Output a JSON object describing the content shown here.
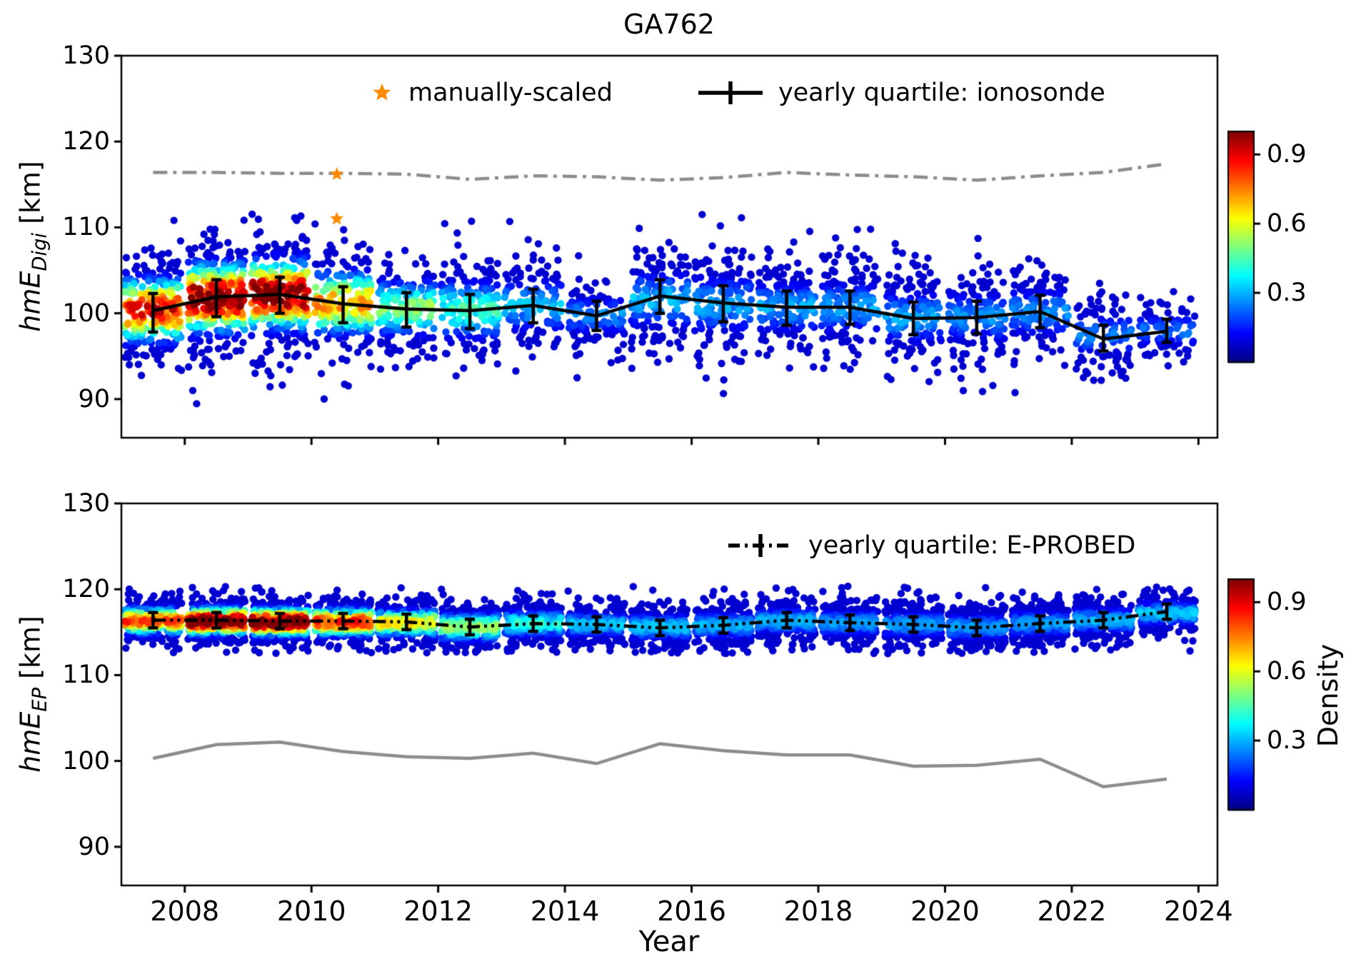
{
  "figure": {
    "title": "GA762",
    "xlabel": "Year",
    "colorbar": {
      "label": "Density",
      "ticks": [
        0.9,
        0.6,
        0.3
      ],
      "range": [
        0,
        1
      ]
    },
    "colors": {
      "reference_gray": "#8c8c8c",
      "quartile_black": "#000000",
      "manual_star_orange": "#ff8c00"
    }
  },
  "chart_data": [
    {
      "type": "scatter",
      "panel": "top",
      "title": "GA762",
      "ylabel": "hmE_Digi [km]",
      "ylabel_parts": {
        "main": "hmE",
        "sub": "Digi",
        "unit": " [km]"
      },
      "xlim": [
        2007.0,
        2024.3
      ],
      "ylim": [
        85.5,
        130
      ],
      "yticks": [
        130,
        120,
        110,
        100,
        90
      ],
      "xticks": [
        2008,
        2010,
        2012,
        2014,
        2016,
        2018,
        2020,
        2022,
        2024
      ],
      "x_tick_labels_visible": false,
      "legend": [
        {
          "label": "manually-scaled",
          "marker": "star",
          "color": "#ff8c00"
        },
        {
          "label": "yearly quartile: ionosonde",
          "marker": "errorbar-solid-line",
          "color": "#000000"
        }
      ],
      "series": [
        {
          "name": "E-PROBED yearly median (reference)",
          "style": "dashdot",
          "color": "#8c8c8c",
          "x": [
            2007.5,
            2008.5,
            2009.5,
            2010.5,
            2011.5,
            2012.5,
            2013.5,
            2014.5,
            2015.5,
            2016.5,
            2017.5,
            2018.5,
            2019.5,
            2020.5,
            2021.5,
            2022.5,
            2023.5
          ],
          "y": [
            116.4,
            116.4,
            116.3,
            116.3,
            116.2,
            115.6,
            116.0,
            115.9,
            115.5,
            115.8,
            116.4,
            116.1,
            115.9,
            115.5,
            116.0,
            116.4,
            117.4
          ]
        },
        {
          "name": "yearly quartile: ionosonde",
          "style": "solid",
          "color": "#000000",
          "x": [
            2007.5,
            2008.5,
            2009.5,
            2010.5,
            2011.5,
            2012.5,
            2013.5,
            2014.5,
            2015.5,
            2016.5,
            2017.5,
            2018.5,
            2019.5,
            2020.5,
            2021.5,
            2022.5,
            2023.5
          ],
          "median": [
            100.3,
            101.9,
            102.2,
            101.1,
            100.5,
            100.3,
            100.9,
            99.7,
            102.0,
            101.2,
            100.7,
            100.7,
            99.4,
            99.5,
            100.2,
            97.0,
            97.9
          ],
          "q1": [
            97.8,
            99.6,
            100.0,
            98.9,
            98.4,
            98.2,
            98.9,
            98.0,
            100.0,
            99.0,
            98.6,
            98.7,
            97.5,
            97.6,
            98.3,
            95.6,
            96.6
          ],
          "q3": [
            102.3,
            103.9,
            104.2,
            103.1,
            102.4,
            102.2,
            102.8,
            101.4,
            103.9,
            103.2,
            102.6,
            102.6,
            101.3,
            101.4,
            102.1,
            98.6,
            99.3
          ]
        }
      ],
      "scatter_clusters": [
        {
          "year": 2007.5,
          "n": 260,
          "mu": 100.4,
          "sigma": 3.4,
          "peak": 0.85
        },
        {
          "year": 2008.5,
          "n": 330,
          "mu": 101.8,
          "sigma": 3.6,
          "peak": 1.0
        },
        {
          "year": 2009.5,
          "n": 330,
          "mu": 102.2,
          "sigma": 3.6,
          "peak": 1.0
        },
        {
          "year": 2010.5,
          "n": 230,
          "mu": 101.2,
          "sigma": 3.4,
          "peak": 0.7
        },
        {
          "year": 2011.5,
          "n": 170,
          "mu": 100.6,
          "sigma": 3.0,
          "peak": 0.5
        },
        {
          "year": 2012.5,
          "n": 180,
          "mu": 100.4,
          "sigma": 3.2,
          "peak": 0.42
        },
        {
          "year": 2013.5,
          "n": 140,
          "mu": 100.9,
          "sigma": 3.0,
          "peak": 0.3
        },
        {
          "year": 2014.5,
          "n": 110,
          "mu": 99.8,
          "sigma": 2.2,
          "peak": 0.26
        },
        {
          "year": 2015.5,
          "n": 170,
          "mu": 101.6,
          "sigma": 3.2,
          "peak": 0.3
        },
        {
          "year": 2016.5,
          "n": 180,
          "mu": 101.0,
          "sigma": 3.4,
          "peak": 0.28
        },
        {
          "year": 2017.5,
          "n": 170,
          "mu": 100.7,
          "sigma": 3.0,
          "peak": 0.28
        },
        {
          "year": 2018.5,
          "n": 160,
          "mu": 100.7,
          "sigma": 3.0,
          "peak": 0.28
        },
        {
          "year": 2019.5,
          "n": 160,
          "mu": 99.5,
          "sigma": 3.0,
          "peak": 0.28
        },
        {
          "year": 2020.5,
          "n": 150,
          "mu": 99.6,
          "sigma": 3.0,
          "peak": 0.26
        },
        {
          "year": 2021.5,
          "n": 150,
          "mu": 100.2,
          "sigma": 2.8,
          "peak": 0.26
        },
        {
          "year": 2022.5,
          "n": 110,
          "mu": 97.5,
          "sigma": 2.4,
          "peak": 0.24
        },
        {
          "year": 2023.5,
          "n": 90,
          "mu": 98.0,
          "sigma": 1.8,
          "peak": 0.24
        }
      ],
      "scatter_y_range": [
        89.3,
        111.6
      ],
      "manually_scaled_points": [
        {
          "x": 2010.4,
          "y": 116.2
        },
        {
          "x": 2010.4,
          "y": 111.0
        }
      ]
    },
    {
      "type": "scatter",
      "panel": "bottom",
      "ylabel": "hmE_EP [km]",
      "ylabel_parts": {
        "main": "hmE",
        "sub": "EP",
        "unit": " [km]"
      },
      "xlim": [
        2007.0,
        2024.3
      ],
      "ylim": [
        85.5,
        130
      ],
      "yticks": [
        130,
        120,
        110,
        100,
        90
      ],
      "xticks": [
        2008,
        2010,
        2012,
        2014,
        2016,
        2018,
        2020,
        2022,
        2024
      ],
      "x_tick_labels_visible": true,
      "legend": [
        {
          "label": "yearly quartile: E-PROBED",
          "marker": "errorbar-dashdot-line",
          "color": "#000000"
        }
      ],
      "series": [
        {
          "name": "ionosonde yearly median (reference)",
          "style": "solid",
          "color": "#8c8c8c",
          "x": [
            2007.5,
            2008.5,
            2009.5,
            2010.5,
            2011.5,
            2012.5,
            2013.5,
            2014.5,
            2015.5,
            2016.5,
            2017.5,
            2018.5,
            2019.5,
            2020.5,
            2021.5,
            2022.5,
            2023.5
          ],
          "y": [
            100.3,
            101.9,
            102.2,
            101.1,
            100.5,
            100.3,
            100.9,
            99.7,
            102.0,
            101.2,
            100.7,
            100.7,
            99.4,
            99.5,
            100.2,
            97.0,
            97.9
          ]
        },
        {
          "name": "yearly quartile: E-PROBED",
          "style": "dashdotdot",
          "color": "#000000",
          "x": [
            2007.5,
            2008.5,
            2009.5,
            2010.5,
            2011.5,
            2012.5,
            2013.5,
            2014.5,
            2015.5,
            2016.5,
            2017.5,
            2018.5,
            2019.5,
            2020.5,
            2021.5,
            2022.5,
            2023.5
          ],
          "median": [
            116.4,
            116.4,
            116.3,
            116.3,
            116.2,
            115.6,
            116.0,
            115.9,
            115.5,
            115.8,
            116.4,
            116.1,
            115.9,
            115.5,
            116.0,
            116.4,
            117.4
          ],
          "q1": [
            115.5,
            115.5,
            115.4,
            115.4,
            115.3,
            114.7,
            115.1,
            115.0,
            114.6,
            114.9,
            115.5,
            115.2,
            115.0,
            114.6,
            115.1,
            115.5,
            116.5
          ],
          "q3": [
            117.3,
            117.3,
            117.2,
            117.2,
            117.1,
            116.5,
            116.9,
            116.8,
            116.4,
            116.7,
            117.3,
            117.0,
            116.8,
            116.4,
            116.9,
            117.3,
            118.3
          ]
        }
      ],
      "scatter_clusters": [
        {
          "year": 2007.5,
          "n": 300,
          "mu": 116.3,
          "sigma": 1.4,
          "peak": 0.75
        },
        {
          "year": 2008.5,
          "n": 330,
          "mu": 116.3,
          "sigma": 1.4,
          "peak": 1.0
        },
        {
          "year": 2009.5,
          "n": 330,
          "mu": 116.2,
          "sigma": 1.4,
          "peak": 1.0
        },
        {
          "year": 2010.5,
          "n": 300,
          "mu": 116.2,
          "sigma": 1.4,
          "peak": 0.8
        },
        {
          "year": 2011.5,
          "n": 280,
          "mu": 116.1,
          "sigma": 1.4,
          "peak": 0.6
        },
        {
          "year": 2012.5,
          "n": 280,
          "mu": 115.6,
          "sigma": 1.5,
          "peak": 0.48
        },
        {
          "year": 2013.5,
          "n": 260,
          "mu": 116.0,
          "sigma": 1.4,
          "peak": 0.38
        },
        {
          "year": 2014.5,
          "n": 220,
          "mu": 115.9,
          "sigma": 1.3,
          "peak": 0.3
        },
        {
          "year": 2015.5,
          "n": 260,
          "mu": 115.6,
          "sigma": 1.4,
          "peak": 0.3
        },
        {
          "year": 2016.5,
          "n": 260,
          "mu": 115.8,
          "sigma": 1.4,
          "peak": 0.28
        },
        {
          "year": 2017.5,
          "n": 260,
          "mu": 116.3,
          "sigma": 1.4,
          "peak": 0.28
        },
        {
          "year": 2018.5,
          "n": 260,
          "mu": 116.1,
          "sigma": 1.4,
          "peak": 0.26
        },
        {
          "year": 2019.5,
          "n": 260,
          "mu": 115.9,
          "sigma": 1.4,
          "peak": 0.26
        },
        {
          "year": 2020.5,
          "n": 260,
          "mu": 115.6,
          "sigma": 1.4,
          "peak": 0.26
        },
        {
          "year": 2021.5,
          "n": 260,
          "mu": 116.0,
          "sigma": 1.4,
          "peak": 0.26
        },
        {
          "year": 2022.5,
          "n": 240,
          "mu": 116.4,
          "sigma": 1.4,
          "peak": 0.28
        },
        {
          "year": 2023.5,
          "n": 200,
          "mu": 117.2,
          "sigma": 1.3,
          "peak": 0.3
        }
      ],
      "scatter_y_range": [
        112.5,
        120.4
      ]
    }
  ]
}
